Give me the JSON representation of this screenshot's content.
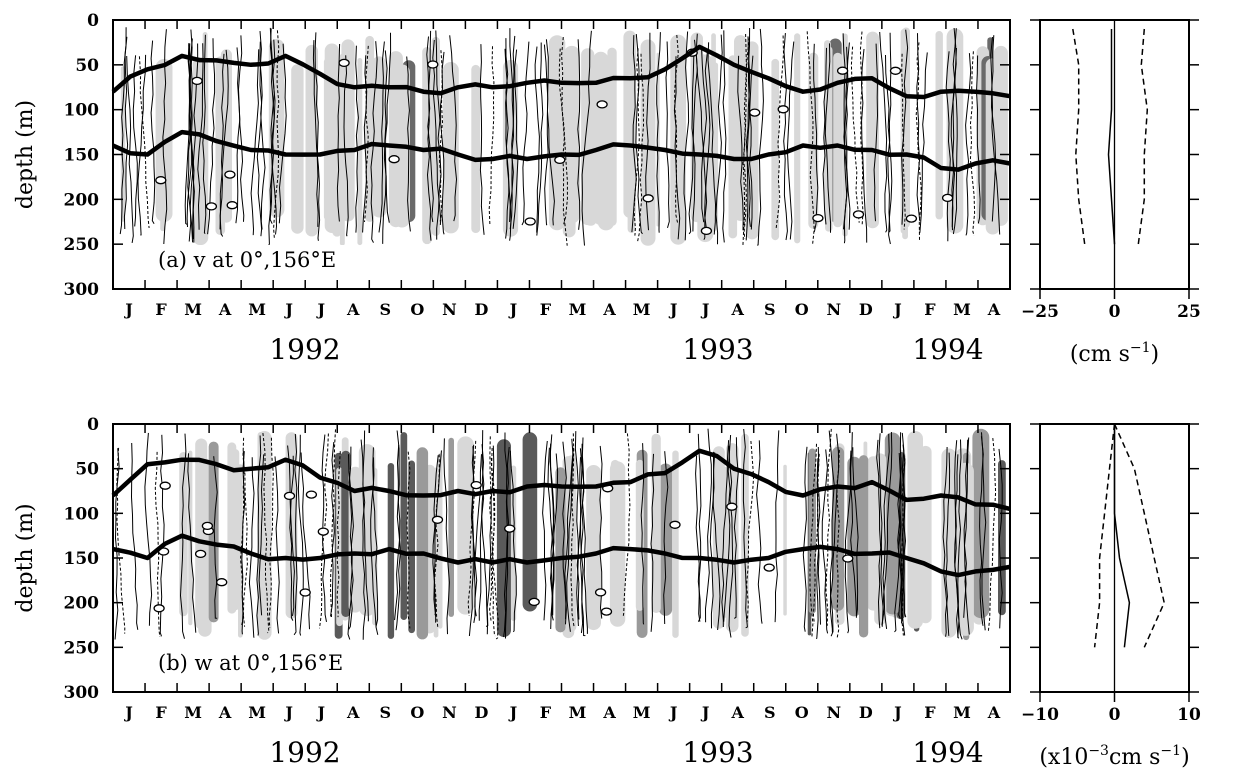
{
  "figure": {
    "panels": [
      {
        "label": "(a) v at 0°,156°E",
        "ylabel": "depth (m)",
        "yticks": [
          "0",
          "50",
          "100",
          "150",
          "200",
          "250",
          "300"
        ],
        "months": [
          "J",
          "F",
          "M",
          "A",
          "M",
          "J",
          "J",
          "A",
          "S",
          "O",
          "N",
          "D",
          "J",
          "F",
          "M",
          "A",
          "M",
          "J",
          "J",
          "A",
          "S",
          "O",
          "N",
          "D",
          "J",
          "F",
          "M",
          "A"
        ],
        "years": [
          "1992",
          "1993",
          "1994"
        ],
        "profile_xticks": [
          "−25",
          "0",
          "25"
        ],
        "profile_unit": "(cm s",
        "profile_unit_sup": "−1",
        "profile_unit_close": ")"
      },
      {
        "label": "(b) w at 0°,156°E",
        "ylabel": "depth (m)",
        "yticks": [
          "0",
          "50",
          "100",
          "150",
          "200",
          "250",
          "300"
        ],
        "months": [
          "J",
          "F",
          "M",
          "A",
          "M",
          "J",
          "J",
          "A",
          "S",
          "O",
          "N",
          "D",
          "J",
          "F",
          "M",
          "A",
          "M",
          "J",
          "J",
          "A",
          "S",
          "O",
          "N",
          "D",
          "J",
          "F",
          "M",
          "A"
        ],
        "years": [
          "1992",
          "1993",
          "1994"
        ],
        "profile_xticks": [
          "−10",
          "0",
          "10"
        ],
        "profile_unit": "(x10",
        "profile_unit_sup": "−3",
        "profile_unit_mid": "cm s",
        "profile_unit_sup2": "−1",
        "profile_unit_close": ")"
      }
    ]
  },
  "chart_data": [
    {
      "type": "heatmap",
      "title": "(a) v at 0°,156°E",
      "ylabel": "depth (m)",
      "ylim": [
        300,
        0
      ],
      "x_range": [
        "1992-01",
        "1994-04"
      ],
      "mixed_layer_depth_m": [
        80,
        55,
        40,
        45,
        50,
        40,
        60,
        75,
        75,
        80,
        75,
        75,
        70,
        70,
        70,
        65,
        55,
        30,
        50,
        65,
        80,
        70,
        65,
        85,
        80,
        80,
        85
      ],
      "thermocline_depth_m": [
        140,
        150,
        125,
        135,
        145,
        150,
        150,
        145,
        140,
        145,
        150,
        155,
        155,
        150,
        145,
        140,
        145,
        150,
        155,
        150,
        140,
        140,
        145,
        150,
        165,
        160,
        160
      ],
      "grid": false
    },
    {
      "type": "line",
      "title": "",
      "xlabel": "(cm s−1)",
      "ylabel": "",
      "xlim": [
        -25,
        25
      ],
      "ylim": [
        300,
        0
      ],
      "depth": [
        10,
        50,
        100,
        150,
        200,
        250
      ],
      "series": [
        {
          "values": [
            -1,
            -1,
            -1,
            -2,
            -1,
            0
          ]
        },
        {
          "values": [
            -14,
            -12,
            -12,
            -13,
            -12,
            -10
          ]
        },
        {
          "values": [
            10,
            9,
            11,
            10,
            10,
            8
          ]
        }
      ]
    },
    {
      "type": "heatmap",
      "title": "(b) w at 0°,156°E",
      "ylabel": "depth (m)",
      "ylim": [
        300,
        0
      ],
      "x_range": [
        "1992-01",
        "1994-04"
      ],
      "mixed_layer_depth_m": [
        80,
        45,
        40,
        45,
        50,
        40,
        60,
        75,
        75,
        80,
        75,
        75,
        70,
        70,
        70,
        65,
        55,
        30,
        50,
        65,
        80,
        70,
        65,
        85,
        80,
        90,
        95
      ],
      "thermocline_depth_m": [
        140,
        150,
        125,
        135,
        145,
        150,
        150,
        145,
        140,
        145,
        155,
        155,
        155,
        150,
        145,
        140,
        145,
        150,
        155,
        150,
        140,
        140,
        145,
        150,
        165,
        165,
        160
      ],
      "grid": false
    },
    {
      "type": "line",
      "title": "",
      "xlabel": "(x10−3cm s−1)",
      "ylabel": "",
      "xlim": [
        -15,
        15
      ],
      "ylim": [
        300,
        0
      ],
      "depth": [
        0,
        50,
        100,
        150,
        200,
        250
      ],
      "series": [
        {
          "values": [
            0,
            0,
            0,
            1,
            3,
            2
          ]
        },
        {
          "values": [
            0,
            -1,
            -2,
            -3,
            -3,
            -4
          ]
        },
        {
          "values": [
            0,
            4,
            6,
            8,
            10,
            6
          ]
        }
      ]
    }
  ]
}
